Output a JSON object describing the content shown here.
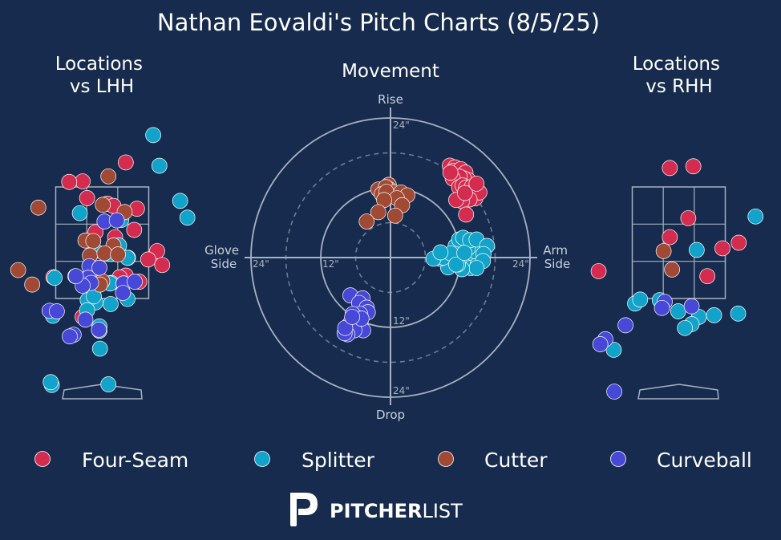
{
  "title": "Nathan Eovaldi's Pitch Charts (8/5/25)",
  "panels": {
    "lhh_title": [
      "Locations",
      "vs LHH"
    ],
    "movement_title": "Movement",
    "rhh_title": [
      "Locations",
      "vs RHH"
    ]
  },
  "movement_labels": {
    "top": "Rise",
    "bottom": "Drop",
    "left": [
      "Glove",
      "Side"
    ],
    "right": [
      "Arm",
      "Side"
    ]
  },
  "movement_ticks": {
    "ring_12": "12\"",
    "ring_24": "24\""
  },
  "legend": [
    {
      "name": "Four-Seam",
      "color": "#d42c4f"
    },
    {
      "name": "Splitter",
      "color": "#11a3c9"
    },
    {
      "name": "Cutter",
      "color": "#a04a35"
    },
    {
      "name": "Curveball",
      "color": "#4747d8"
    }
  ],
  "logo": {
    "bold": "PITCHER",
    "light": "LIST"
  },
  "chart_data": [
    {
      "type": "scatter",
      "panel": "locations_vs_lhh",
      "units": "plate_x (ft, catcher view), plate_z (ft)",
      "strike_zone": {
        "x": [
          -0.83,
          0.83
        ],
        "z": [
          1.5,
          3.5
        ]
      },
      "series": [
        {
          "name": "Four-Seam",
          "points": [
            [
              -0.35,
              3.6
            ],
            [
              -0.59,
              3.59
            ],
            [
              0.42,
              3.94
            ],
            [
              -0.27,
              3.3
            ],
            [
              0.09,
              3.2
            ],
            [
              0.2,
              3.16
            ],
            [
              0.62,
              3.11
            ],
            [
              0.57,
              2.73
            ],
            [
              -0.12,
              2.69
            ],
            [
              0.23,
              2.6
            ],
            [
              0.98,
              2.35
            ],
            [
              0.82,
              2.2
            ],
            [
              0.46,
              2.23
            ],
            [
              1.07,
              2.1
            ],
            [
              0.42,
              1.91
            ],
            [
              0.31,
              1.88
            ],
            [
              -0.48,
              1.9
            ],
            [
              -0.87,
              1.88
            ],
            [
              0.66,
              1.8
            ],
            [
              -0.35,
              1.17
            ]
          ]
        },
        {
          "name": "Splitter",
          "points": [
            [
              0.91,
              4.43
            ],
            [
              1.02,
              3.88
            ],
            [
              1.39,
              3.25
            ],
            [
              -0.4,
              3.03
            ],
            [
              0.34,
              2.91
            ],
            [
              1.52,
              2.95
            ],
            [
              0.3,
              2.45
            ],
            [
              0.15,
              2.3
            ],
            [
              -0.12,
              2.35
            ],
            [
              0.45,
              2.23
            ],
            [
              -0.85,
              1.87
            ],
            [
              0.16,
              1.78
            ],
            [
              -0.18,
              1.63
            ],
            [
              0.14,
              1.77
            ],
            [
              -0.12,
              1.43
            ],
            [
              0.15,
              1.4
            ],
            [
              -0.26,
              1.47
            ],
            [
              -0.15,
              1.54
            ],
            [
              0.45,
              1.49
            ],
            [
              -0.27,
              1.29
            ],
            [
              -0.88,
              1.19
            ],
            [
              -0.05,
              1.0
            ],
            [
              -0.05,
              0.92
            ],
            [
              -0.04,
              0.6
            ],
            [
              -0.9,
              -0.05
            ],
            [
              0.11,
              -0.04
            ],
            [
              -0.92,
              0.0
            ]
          ]
        },
        {
          "name": "Cutter",
          "points": [
            [
              -1.14,
              3.13
            ],
            [
              0.11,
              3.69
            ],
            [
              0.01,
              3.18
            ],
            [
              0.4,
              3.05
            ],
            [
              -0.3,
              2.54
            ],
            [
              0.2,
              2.45
            ],
            [
              -0.16,
              2.53
            ],
            [
              -0.22,
              2.27
            ],
            [
              0.04,
              2.31
            ],
            [
              0.28,
              2.29
            ],
            [
              -1.5,
              2.01
            ],
            [
              -1.25,
              1.75
            ],
            [
              -0.23,
              1.9
            ],
            [
              0.0,
              1.81
            ],
            [
              -0.04,
              1.75
            ]
          ]
        },
        {
          "name": "Curveball",
          "points": [
            [
              -0.23,
              2.08
            ],
            [
              -0.05,
              2.05
            ],
            [
              0.04,
              2.88
            ],
            [
              0.26,
              2.9
            ],
            [
              -0.25,
              1.87
            ],
            [
              -0.2,
              1.78
            ],
            [
              -0.35,
              1.73
            ],
            [
              -0.47,
              1.9
            ],
            [
              0.38,
              1.77
            ],
            [
              0.38,
              1.77
            ],
            [
              0.58,
              1.8
            ],
            [
              0.37,
              1.6
            ],
            [
              -0.94,
              1.28
            ],
            [
              -0.81,
              1.27
            ],
            [
              -0.3,
              1.12
            ],
            [
              -0.06,
              0.94
            ],
            [
              -0.51,
              0.85
            ],
            [
              -0.58,
              0.82
            ]
          ]
        }
      ]
    },
    {
      "type": "scatter",
      "panel": "movement",
      "units": "horizontal break (in, + = arm side), induced vertical break (in)",
      "ring_radii_in": [
        6,
        12,
        18,
        24
      ],
      "series": [
        {
          "name": "Four-Seam",
          "points": [
            [
              10.2,
              15.8
            ],
            [
              11.1,
              15.5
            ],
            [
              10.8,
              14.9
            ],
            [
              12.1,
              15.2
            ],
            [
              12.9,
              14.6
            ],
            [
              13.4,
              13.3
            ],
            [
              12.6,
              13.6
            ],
            [
              11.9,
              13.9
            ],
            [
              10.7,
              13.6
            ],
            [
              11.8,
              12.1
            ],
            [
              12.4,
              12.4
            ],
            [
              13.0,
              12.0
            ],
            [
              14.0,
              12.2
            ],
            [
              13.2,
              11.0
            ],
            [
              14.6,
              10.2
            ],
            [
              15.3,
              11.2
            ],
            [
              13.6,
              10.0
            ],
            [
              12.3,
              9.7
            ],
            [
              11.3,
              9.9
            ],
            [
              13.0,
              7.4
            ],
            [
              12.8,
              11.1
            ],
            [
              14.8,
              12.7
            ],
            [
              10.3,
              14.6
            ]
          ]
        },
        {
          "name": "Splitter",
          "points": [
            [
              12.7,
              0.3
            ],
            [
              10.7,
              0.4
            ],
            [
              11.5,
              0.1
            ],
            [
              13.2,
              -0.3
            ],
            [
              14.2,
              -0.2
            ],
            [
              12.2,
              -0.7
            ],
            [
              11.0,
              -1.0
            ],
            [
              12.8,
              -1.5
            ],
            [
              13.8,
              -1.8
            ],
            [
              15.0,
              -1.2
            ],
            [
              16.3,
              1.9
            ],
            [
              15.6,
              0.8
            ],
            [
              14.5,
              1.1
            ],
            [
              12.5,
              1.4
            ],
            [
              13.3,
              1.6
            ],
            [
              11.2,
              2.0
            ],
            [
              11.8,
              3.1
            ],
            [
              12.5,
              3.4
            ],
            [
              13.7,
              3.0
            ],
            [
              14.8,
              3.1
            ],
            [
              16.6,
              2.0
            ],
            [
              16.0,
              0.6
            ],
            [
              15.9,
              -0.6
            ],
            [
              14.8,
              -1.8
            ],
            [
              12.3,
              -2.0
            ],
            [
              11.6,
              -1.2
            ],
            [
              9.9,
              -1.7
            ],
            [
              8.5,
              -0.2
            ],
            [
              9.1,
              0.0
            ],
            [
              7.4,
              -0.2
            ],
            [
              10.4,
              0.7
            ],
            [
              8.6,
              0.9
            ],
            [
              11.3,
              -1.2
            ],
            [
              12.7,
              0.8
            ]
          ]
        },
        {
          "name": "Cutter",
          "points": [
            [
              -0.3,
              12.5
            ],
            [
              -0.3,
              11.8
            ],
            [
              -2.1,
              11.7
            ],
            [
              -0.8,
              12.1
            ],
            [
              0.6,
              11.2
            ],
            [
              -1.5,
              10.9
            ],
            [
              -0.7,
              11.3
            ],
            [
              1.8,
              11.2
            ],
            [
              2.9,
              10.7
            ],
            [
              1.1,
              10.2
            ],
            [
              -1.1,
              9.9
            ],
            [
              2.0,
              9.0
            ],
            [
              0.8,
              7.2
            ],
            [
              -2.1,
              7.8
            ],
            [
              -4.1,
              6.2
            ]
          ]
        },
        {
          "name": "Curveball",
          "points": [
            [
              -6.9,
              -6.5
            ],
            [
              -4.8,
              -7.0
            ],
            [
              -5.4,
              -7.8
            ],
            [
              -4.1,
              -8.6
            ],
            [
              -3.9,
              -9.4
            ],
            [
              -5.2,
              -9.7
            ],
            [
              -6.0,
              -10.2
            ],
            [
              -6.5,
              -9.7
            ],
            [
              -7.0,
              -11.4
            ],
            [
              -5.8,
              -11.9
            ],
            [
              -5.2,
              -11.3
            ],
            [
              -4.7,
              -12.5
            ],
            [
              -6.2,
              -12.5
            ],
            [
              -7.4,
              -13.2
            ],
            [
              -7.9,
              -13.0
            ],
            [
              -7.8,
              -12.1
            ],
            [
              -5.0,
              -10.5
            ],
            [
              -6.6,
              -10.2
            ]
          ]
        }
      ]
    },
    {
      "type": "scatter",
      "panel": "locations_vs_rhh",
      "units": "plate_x (ft, catcher view), plate_z (ft)",
      "strike_zone": {
        "x": [
          -0.83,
          0.83
        ],
        "z": [
          1.5,
          3.5
        ]
      },
      "series": [
        {
          "name": "Four-Seam",
          "points": [
            [
              -0.16,
              3.84
            ],
            [
              0.26,
              3.87
            ],
            [
              0.17,
              2.94
            ],
            [
              -0.16,
              2.6
            ],
            [
              0.78,
              2.4
            ],
            [
              1.07,
              2.5
            ],
            [
              -1.43,
              1.99
            ],
            [
              0.51,
              1.9
            ]
          ]
        },
        {
          "name": "Splitter",
          "points": [
            [
              1.37,
              2.97
            ],
            [
              0.32,
              2.37
            ],
            [
              -0.78,
              1.41
            ],
            [
              -0.34,
              1.47
            ],
            [
              -0.01,
              1.27
            ],
            [
              -0.69,
              1.48
            ],
            [
              0.63,
              1.2
            ],
            [
              0.36,
              1.17
            ],
            [
              1.06,
              1.23
            ],
            [
              -1.16,
              0.58
            ],
            [
              0.23,
              1.04
            ],
            [
              0.11,
              0.97
            ]
          ]
        },
        {
          "name": "Cutter",
          "points": [
            [
              -0.27,
              2.35
            ],
            [
              -0.12,
              2.02
            ]
          ]
        },
        {
          "name": "Curveball",
          "points": [
            [
              -0.25,
              1.44
            ],
            [
              0.23,
              1.36
            ],
            [
              -0.3,
              1.33
            ],
            [
              -0.95,
              1.02
            ],
            [
              -1.31,
              0.77
            ],
            [
              -1.4,
              0.68
            ],
            [
              -1.15,
              -0.17
            ]
          ]
        }
      ]
    }
  ]
}
